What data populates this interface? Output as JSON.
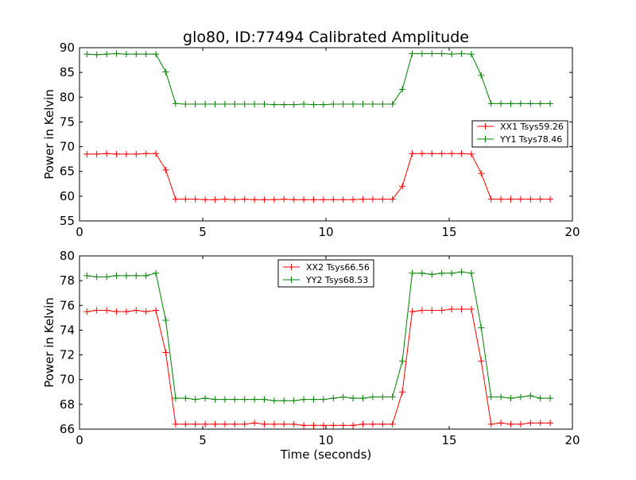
{
  "chart_data": [
    {
      "type": "line",
      "title": "glo80, ID:77494 Calibrated Amplitude",
      "xlabel": "",
      "ylabel": "Power in Kelvin",
      "xlim": [
        0,
        20
      ],
      "ylim": [
        55,
        90
      ],
      "xticks": [
        0,
        5,
        10,
        15,
        20
      ],
      "yticks": [
        55,
        60,
        65,
        70,
        75,
        80,
        85,
        90
      ],
      "legend_position": "center-right",
      "x": [
        0.3,
        0.7,
        1.1,
        1.5,
        1.9,
        2.3,
        2.7,
        3.1,
        3.5,
        3.9,
        4.3,
        4.7,
        5.1,
        5.5,
        5.9,
        6.3,
        6.7,
        7.1,
        7.5,
        7.9,
        8.3,
        8.7,
        9.1,
        9.5,
        9.9,
        10.3,
        10.7,
        11.1,
        11.5,
        11.9,
        12.3,
        12.7,
        13.1,
        13.5,
        13.9,
        14.3,
        14.7,
        15.1,
        15.5,
        15.9,
        16.3,
        16.7,
        17.1,
        17.5,
        17.9,
        18.3,
        18.7,
        19.1
      ],
      "series": [
        {
          "name": "XX1 Tsys59.26",
          "color": "#ff0000",
          "values": [
            68.5,
            68.5,
            68.6,
            68.5,
            68.5,
            68.5,
            68.6,
            68.6,
            65.3,
            59.4,
            59.4,
            59.4,
            59.3,
            59.3,
            59.4,
            59.3,
            59.4,
            59.3,
            59.3,
            59.3,
            59.4,
            59.3,
            59.3,
            59.3,
            59.3,
            59.3,
            59.3,
            59.3,
            59.4,
            59.4,
            59.4,
            59.4,
            62.0,
            68.6,
            68.6,
            68.6,
            68.6,
            68.6,
            68.6,
            68.5,
            64.6,
            59.4,
            59.4,
            59.4,
            59.4,
            59.4,
            59.4,
            59.4
          ]
        },
        {
          "name": "YY1 Tsys78.46",
          "color": "#008000",
          "values": [
            88.7,
            88.6,
            88.7,
            88.8,
            88.7,
            88.7,
            88.7,
            88.7,
            85.1,
            78.7,
            78.6,
            78.6,
            78.6,
            78.6,
            78.6,
            78.6,
            78.6,
            78.6,
            78.6,
            78.5,
            78.5,
            78.5,
            78.6,
            78.5,
            78.5,
            78.6,
            78.6,
            78.6,
            78.6,
            78.6,
            78.6,
            78.6,
            81.6,
            88.8,
            88.8,
            88.8,
            88.8,
            88.7,
            88.8,
            88.7,
            84.4,
            78.7,
            78.7,
            78.7,
            78.7,
            78.7,
            78.7,
            78.7
          ]
        }
      ]
    },
    {
      "type": "line",
      "title": "",
      "xlabel": "Time (seconds)",
      "ylabel": "Power in Kelvin",
      "xlim": [
        0,
        20
      ],
      "ylim": [
        66,
        80
      ],
      "xticks": [
        0,
        5,
        10,
        15,
        20
      ],
      "yticks": [
        66,
        68,
        70,
        72,
        74,
        76,
        78,
        80
      ],
      "legend_position": "upper-center",
      "x": [
        0.3,
        0.7,
        1.1,
        1.5,
        1.9,
        2.3,
        2.7,
        3.1,
        3.5,
        3.9,
        4.3,
        4.7,
        5.1,
        5.5,
        5.9,
        6.3,
        6.7,
        7.1,
        7.5,
        7.9,
        8.3,
        8.7,
        9.1,
        9.5,
        9.9,
        10.3,
        10.7,
        11.1,
        11.5,
        11.9,
        12.3,
        12.7,
        13.1,
        13.5,
        13.9,
        14.3,
        14.7,
        15.1,
        15.5,
        15.9,
        16.3,
        16.7,
        17.1,
        17.5,
        17.9,
        18.3,
        18.7,
        19.1
      ],
      "series": [
        {
          "name": "XX2 Tsys66.56",
          "color": "#ff0000",
          "values": [
            75.5,
            75.6,
            75.6,
            75.5,
            75.5,
            75.6,
            75.5,
            75.6,
            72.2,
            66.4,
            66.4,
            66.4,
            66.4,
            66.4,
            66.4,
            66.4,
            66.4,
            66.5,
            66.4,
            66.4,
            66.4,
            66.4,
            66.3,
            66.3,
            66.3,
            66.3,
            66.3,
            66.3,
            66.4,
            66.4,
            66.4,
            66.4,
            69.0,
            75.5,
            75.6,
            75.6,
            75.6,
            75.7,
            75.7,
            75.7,
            71.5,
            66.4,
            66.5,
            66.4,
            66.4,
            66.5,
            66.5,
            66.5
          ]
        },
        {
          "name": "YY2 Tsys68.53",
          "color": "#008000",
          "values": [
            78.4,
            78.3,
            78.3,
            78.4,
            78.4,
            78.4,
            78.4,
            78.6,
            74.8,
            68.5,
            68.5,
            68.4,
            68.5,
            68.4,
            68.4,
            68.4,
            68.4,
            68.4,
            68.4,
            68.3,
            68.3,
            68.3,
            68.4,
            68.4,
            68.4,
            68.5,
            68.6,
            68.5,
            68.5,
            68.6,
            68.6,
            68.6,
            71.5,
            78.6,
            78.6,
            78.5,
            78.6,
            78.6,
            78.7,
            78.6,
            74.2,
            68.6,
            68.6,
            68.5,
            68.6,
            68.7,
            68.5,
            68.5
          ]
        }
      ]
    }
  ]
}
